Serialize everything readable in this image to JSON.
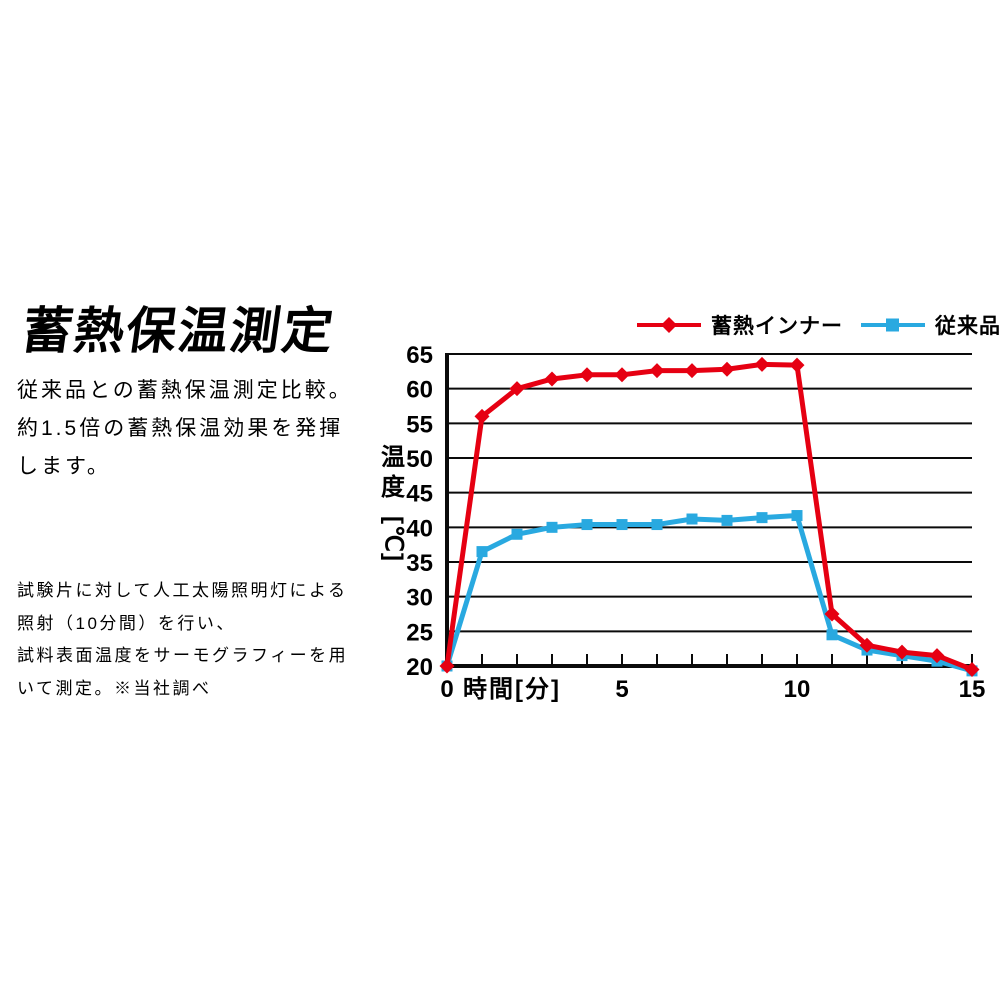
{
  "page": {
    "title": "蓄熱保温測定",
    "description_lines": [
      "従来品との蓄熱保温測定比較。",
      "約1.5倍の蓄熱保温効果を発揮",
      "します。"
    ],
    "method_lines": [
      "試験片に対して人工太陽照明灯による",
      "照射（10分間）を行い、",
      "試料表面温度をサーモグラフィーを用",
      "いて測定。※当社調べ"
    ]
  },
  "y_axis_title": {
    "upper": "温",
    "lower": "度",
    "unit": "[℃]"
  },
  "chart_data": {
    "type": "line",
    "title": "",
    "xlabel": "時間[分]",
    "ylabel": "温度[℃]",
    "x": [
      0,
      1,
      2,
      3,
      4,
      5,
      6,
      7,
      8,
      9,
      10,
      11,
      12,
      13,
      14,
      15
    ],
    "series": [
      {
        "name": "蓄熱インナー",
        "color": "#e60012",
        "marker": "diamond",
        "values": [
          20,
          56,
          60,
          61.4,
          62,
          62,
          62.6,
          62.6,
          62.8,
          63.5,
          63.4,
          27.5,
          23,
          22,
          21.5,
          19.5
        ]
      },
      {
        "name": "従来品",
        "color": "#29a9e0",
        "marker": "square",
        "values": [
          20,
          36.5,
          39,
          40,
          40.4,
          40.4,
          40.4,
          41.2,
          41,
          41.4,
          41.7,
          24.5,
          22.3,
          21.5,
          20.7,
          19.3
        ]
      }
    ],
    "ylim": [
      20,
      65
    ],
    "xlim": [
      0,
      15
    ],
    "ytick_step": 5,
    "xticks_labeled": [
      0,
      5,
      10,
      15
    ],
    "grid": true,
    "grid_color": "#0a0a0a",
    "legend_position": "top-right"
  }
}
